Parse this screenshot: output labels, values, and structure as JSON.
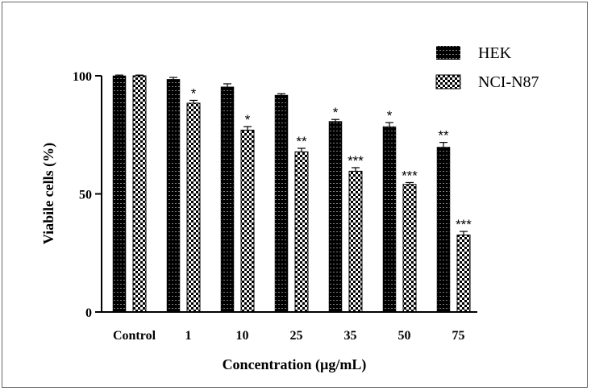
{
  "chart_data": {
    "type": "bar",
    "title": "",
    "xlabel": "Concentration (µg/mL)",
    "ylabel": "Viabile cells (%)",
    "ylim": [
      0,
      100
    ],
    "yticks": [
      "0",
      "50",
      "100"
    ],
    "categories": [
      "Control",
      "1",
      "10",
      "25",
      "35",
      "50",
      "75"
    ],
    "legend_position": "top-right",
    "series": [
      {
        "name": "HEK",
        "pattern": "dotted-black",
        "color": "#000000",
        "values": [
          100,
          98.5,
          95.3,
          91.8,
          80.7,
          78.5,
          69.8
        ],
        "errors": [
          0.3,
          0.8,
          1.3,
          0.6,
          0.8,
          1.7,
          2.0
        ],
        "annotations": [
          "",
          "",
          "",
          "",
          "*",
          "*",
          "**"
        ]
      },
      {
        "name": "NCI-N87",
        "pattern": "checkered",
        "color": "#000000",
        "values": [
          100,
          88.4,
          77.0,
          67.8,
          59.6,
          54.0,
          32.6
        ],
        "errors": [
          0.3,
          1.2,
          1.5,
          1.5,
          1.5,
          0.8,
          1.5
        ],
        "annotations": [
          "",
          "*",
          "*",
          "**",
          "***",
          "***",
          "***"
        ]
      }
    ]
  }
}
